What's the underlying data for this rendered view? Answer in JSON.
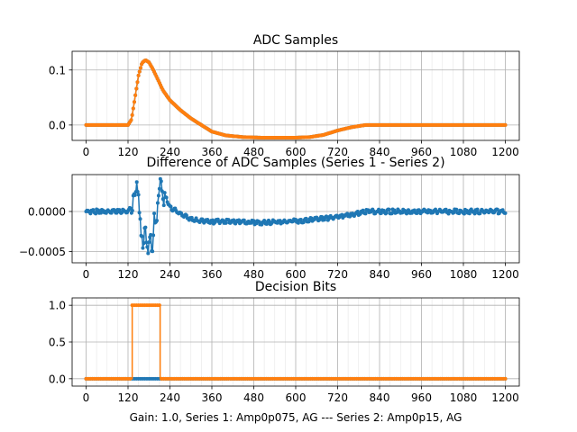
{
  "figure": {
    "footer": "Gain: 1.0, Series 1: Amp0p075, AG --- Series 2: Amp0p15, AG"
  },
  "chart_data": [
    {
      "type": "line",
      "title": "ADC Samples",
      "xlabel": "",
      "ylabel": "",
      "xlim": [
        -40,
        1240
      ],
      "ylim": [
        -0.028,
        0.134
      ],
      "xticks": [
        0,
        120,
        240,
        360,
        480,
        600,
        720,
        840,
        960,
        1080,
        1200
      ],
      "yticks": [
        0.0,
        0.1
      ],
      "ytick_labels": [
        "0.0",
        "0.1"
      ],
      "grid": true,
      "colors": {
        "series1": "#1f77b4",
        "series2": "#ff7f0e"
      },
      "series": [
        {
          "x": [
            0,
            100,
            120,
            130,
            140,
            150,
            160,
            170,
            180,
            190,
            200,
            220,
            240,
            270,
            300,
            330,
            360,
            400,
            450,
            500,
            600,
            640,
            680,
            720,
            760,
            800,
            1200
          ],
          "values": [
            0.0,
            0.0,
            0.0,
            0.01,
            0.05,
            0.09,
            0.113,
            0.118,
            0.114,
            0.103,
            0.09,
            0.063,
            0.045,
            0.027,
            0.012,
            0.0,
            -0.012,
            -0.019,
            -0.022,
            -0.023,
            -0.023,
            -0.022,
            -0.018,
            -0.01,
            -0.004,
            0.0,
            0.0
          ]
        },
        {
          "x": [
            0,
            100,
            120,
            130,
            140,
            150,
            160,
            170,
            180,
            190,
            200,
            220,
            240,
            270,
            300,
            330,
            360,
            400,
            450,
            500,
            600,
            640,
            680,
            720,
            760,
            800,
            1200
          ],
          "values": [
            0.0,
            0.0,
            0.0,
            0.01,
            0.05,
            0.09,
            0.113,
            0.118,
            0.114,
            0.103,
            0.09,
            0.063,
            0.045,
            0.027,
            0.012,
            0.0,
            -0.012,
            -0.019,
            -0.022,
            -0.023,
            -0.023,
            -0.022,
            -0.018,
            -0.01,
            -0.004,
            0.0,
            0.0
          ]
        }
      ]
    },
    {
      "type": "line",
      "title": "Difference of ADC Samples (Series 1 - Series 2)",
      "xlabel": "",
      "ylabel": "",
      "xlim": [
        -40,
        1240
      ],
      "ylim": [
        -0.00064,
        0.00046
      ],
      "xticks": [
        0,
        120,
        240,
        360,
        480,
        600,
        720,
        840,
        960,
        1080,
        1200
      ],
      "yticks": [
        -0.0005,
        0.0
      ],
      "ytick_labels": [
        "−0.0005",
        "0.0000"
      ],
      "grid": true,
      "colors": {
        "series1": "#1f77b4"
      },
      "series": [
        {
          "x": [
            0,
            60,
            100,
            120,
            130,
            140,
            145,
            150,
            155,
            160,
            165,
            170,
            175,
            180,
            185,
            190,
            195,
            200,
            205,
            210,
            215,
            220,
            230,
            240,
            260,
            280,
            300,
            330,
            360,
            400,
            450,
            500,
            560,
            600,
            650,
            700,
            740,
            780,
            800,
            850,
            900,
            1000,
            1100,
            1200
          ],
          "values": [
            0.0,
            0.0,
            0.0,
            0.0,
            5e-05,
            0.00015,
            0.0004,
            0.0001,
            -0.0002,
            -0.0003,
            -0.00045,
            -0.0002,
            -0.0004,
            -0.0005,
            -0.0003,
            -0.00045,
            -0.0001,
            -0.0002,
            0.00015,
            0.00025,
            0.00035,
            0.0002,
            0.00015,
            5e-05,
            0.0,
            -5e-05,
            -0.0001,
            -0.00012,
            -0.00013,
            -0.00012,
            -0.00013,
            -0.00014,
            -0.00013,
            -0.00012,
            -0.0001,
            -8e-05,
            -5e-05,
            -2e-05,
            0.0,
            0.0,
            0.0,
            0.0,
            0.0,
            0.0
          ]
        }
      ]
    },
    {
      "type": "line",
      "title": "Decision Bits",
      "xlabel": "Gain: 1.0, Series 1: Amp0p075, AG --- Series 2: Amp0p15, AG",
      "ylabel": "",
      "xlim": [
        -40,
        1240
      ],
      "ylim": [
        -0.1,
        1.1
      ],
      "xticks": [
        0,
        120,
        240,
        360,
        480,
        600,
        720,
        840,
        960,
        1080,
        1200
      ],
      "yticks": [
        0.0,
        0.5,
        1.0
      ],
      "ytick_labels": [
        "0.0",
        "0.5",
        "1.0"
      ],
      "grid": true,
      "colors": {
        "series1": "#1f77b4",
        "series2": "#ff7f0e"
      },
      "series": [
        {
          "x": [
            0,
            1200
          ],
          "values": [
            0,
            0
          ]
        },
        {
          "x": [
            0,
            132,
            132,
            212,
            212,
            1200
          ],
          "values": [
            0,
            0,
            1,
            1,
            0,
            0
          ]
        }
      ]
    }
  ]
}
